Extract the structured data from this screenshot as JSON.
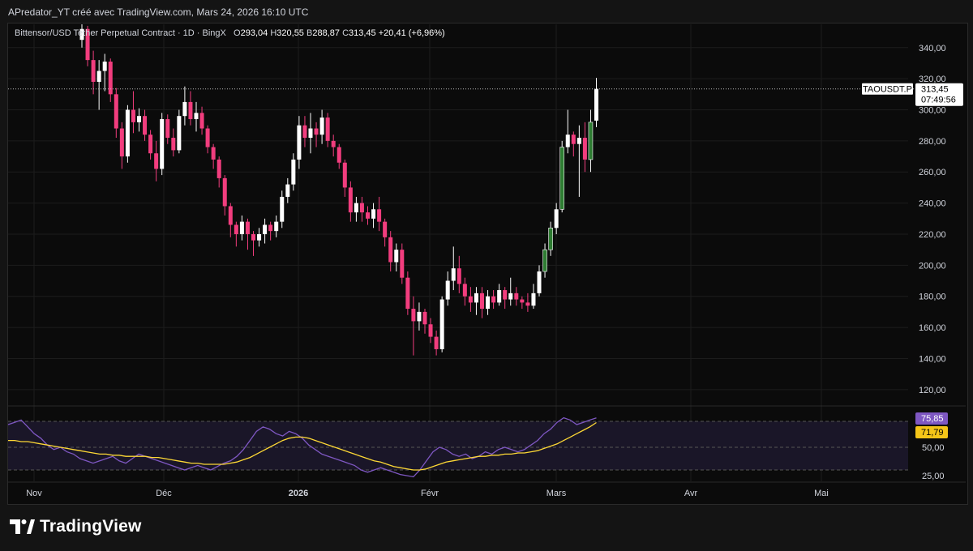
{
  "header": {
    "credit": "APredator_YT créé avec TradingView.com, Mars 24, 2026 16:10 UTC"
  },
  "legend": {
    "symbol": "Bittensor/USD Tether Perpetual Contract · 1D · BingX",
    "open_k": "O",
    "open": "293,04",
    "high_k": "H",
    "high": "320,55",
    "low_k": "B",
    "low": "288,87",
    "close_k": "C",
    "close": "313,45",
    "change": "+20,41 (+6,96%)"
  },
  "price_tag": {
    "ticker": "TAOUSDT.P",
    "price": "313,45",
    "countdown": "07:49:56"
  },
  "rsi_tags": {
    "rsi": "75,85",
    "ma": "71,79"
  },
  "brand": {
    "name": "TradingView"
  },
  "colors": {
    "up": "#ffffff",
    "down": "#f23d7e",
    "up_green": "#2e7d32",
    "rsi": "#7e57c2",
    "rsi_ma": "#fdd835",
    "ma_tag": "#f5c518"
  },
  "chart_data": [
    {
      "type": "candlestick",
      "title": "Bittensor/USD Tether Perpetual Contract · 1D · BingX",
      "ylim": [
        110,
        355
      ],
      "yticks": [
        120,
        140,
        160,
        180,
        200,
        220,
        240,
        260,
        280,
        300,
        320,
        340
      ],
      "ytick_labels": [
        "120,00",
        "140,00",
        "160,00",
        "180,00",
        "200,00",
        "220,00",
        "240,00",
        "260,00",
        "280,00",
        "300,00",
        "320,00",
        "340,00"
      ],
      "x_labels": [
        "Nov",
        "Déc",
        "2026",
        "Févr",
        "Mars",
        "Avr",
        "Mai"
      ],
      "x_label_dates": [
        "2025-11-01",
        "2025-12-01",
        "2026-01-01",
        "2026-02-01",
        "2026-03-01",
        "2026-04-01",
        "2026-05-01"
      ],
      "x_start": "2025-11-10",
      "last_price": 313.45,
      "ohlc": [
        [
          345,
          355,
          340,
          352
        ],
        [
          352,
          354,
          328,
          332
        ],
        [
          332,
          338,
          310,
          318
        ],
        [
          318,
          332,
          300,
          325
        ],
        [
          325,
          336,
          312,
          331
        ],
        [
          331,
          333,
          305,
          310
        ],
        [
          310,
          314,
          282,
          288
        ],
        [
          288,
          292,
          262,
          270
        ],
        [
          270,
          303,
          266,
          300
        ],
        [
          300,
          312,
          285,
          292
        ],
        [
          292,
          301,
          286,
          296
        ],
        [
          296,
          300,
          280,
          284
        ],
        [
          284,
          287,
          268,
          272
        ],
        [
          272,
          280,
          254,
          262
        ],
        [
          262,
          298,
          258,
          294
        ],
        [
          294,
          297,
          278,
          282
        ],
        [
          282,
          288,
          270,
          274
        ],
        [
          274,
          300,
          272,
          296
        ],
        [
          296,
          315,
          290,
          305
        ],
        [
          305,
          312,
          290,
          294
        ],
        [
          294,
          305,
          286,
          298
        ],
        [
          298,
          302,
          284,
          288
        ],
        [
          288,
          290,
          272,
          276
        ],
        [
          276,
          278,
          262,
          268
        ],
        [
          268,
          270,
          250,
          256
        ],
        [
          256,
          258,
          232,
          238
        ],
        [
          238,
          240,
          218,
          226
        ],
        [
          226,
          228,
          212,
          220
        ],
        [
          220,
          232,
          216,
          228
        ],
        [
          228,
          230,
          210,
          220
        ],
        [
          220,
          222,
          206,
          216
        ],
        [
          216,
          224,
          212,
          220
        ],
        [
          220,
          230,
          214,
          226
        ],
        [
          226,
          228,
          216,
          222
        ],
        [
          222,
          232,
          218,
          228
        ],
        [
          228,
          248,
          224,
          244
        ],
        [
          244,
          256,
          240,
          252
        ],
        [
          252,
          272,
          248,
          268
        ],
        [
          268,
          296,
          262,
          290
        ],
        [
          290,
          296,
          276,
          282
        ],
        [
          282,
          298,
          272,
          288
        ],
        [
          288,
          292,
          276,
          284
        ],
        [
          284,
          300,
          278,
          295
        ],
        [
          295,
          298,
          276,
          280
        ],
        [
          280,
          284,
          270,
          276
        ],
        [
          276,
          278,
          262,
          266
        ],
        [
          266,
          268,
          244,
          250
        ],
        [
          250,
          254,
          228,
          234
        ],
        [
          234,
          244,
          228,
          240
        ],
        [
          240,
          244,
          228,
          234
        ],
        [
          234,
          238,
          226,
          230
        ],
        [
          230,
          240,
          224,
          236
        ],
        [
          236,
          244,
          222,
          228
        ],
        [
          228,
          230,
          212,
          218
        ],
        [
          218,
          222,
          196,
          202
        ],
        [
          202,
          214,
          196,
          210
        ],
        [
          210,
          214,
          188,
          192
        ],
        [
          192,
          196,
          168,
          172
        ],
        [
          172,
          180,
          142,
          164
        ],
        [
          164,
          176,
          158,
          170
        ],
        [
          170,
          172,
          156,
          162
        ],
        [
          162,
          166,
          150,
          154
        ],
        [
          154,
          158,
          142,
          146
        ],
        [
          146,
          180,
          144,
          178
        ],
        [
          178,
          196,
          174,
          190
        ],
        [
          190,
          212,
          184,
          198
        ],
        [
          198,
          206,
          182,
          188
        ],
        [
          188,
          192,
          174,
          180
        ],
        [
          180,
          186,
          170,
          176
        ],
        [
          176,
          186,
          168,
          182
        ],
        [
          182,
          186,
          166,
          172
        ],
        [
          172,
          184,
          168,
          180
        ],
        [
          180,
          184,
          172,
          176
        ],
        [
          176,
          188,
          174,
          184
        ],
        [
          184,
          186,
          172,
          178
        ],
        [
          178,
          192,
          174,
          182
        ],
        [
          182,
          186,
          174,
          178
        ],
        [
          178,
          180,
          172,
          176
        ],
        [
          176,
          182,
          170,
          174
        ],
        [
          174,
          188,
          172,
          182
        ],
        [
          182,
          200,
          180,
          196
        ],
        [
          196,
          214,
          192,
          210
        ],
        [
          210,
          228,
          206,
          224
        ],
        [
          224,
          240,
          220,
          236
        ],
        [
          236,
          280,
          234,
          276
        ],
        [
          276,
          300,
          272,
          284
        ],
        [
          284,
          286,
          270,
          278
        ],
        [
          278,
          290,
          244,
          282
        ],
        [
          282,
          292,
          260,
          268
        ],
        [
          268,
          300,
          260,
          292
        ],
        [
          293.04,
          320.55,
          288.87,
          313.45
        ]
      ]
    },
    {
      "type": "line",
      "title": "RSI",
      "ylim": [
        20,
        85
      ],
      "yticks": [
        25,
        50
      ],
      "ytick_labels": [
        "25,00",
        "50,00"
      ],
      "bands": [
        30,
        50,
        70
      ],
      "series": [
        {
          "values": [
            70,
            72,
            74,
            68,
            62,
            58,
            52,
            48,
            50,
            46,
            44,
            40,
            38,
            36,
            38,
            40,
            42,
            38,
            36,
            40,
            44,
            42,
            40,
            38,
            36,
            34,
            32,
            30,
            32,
            34,
            32,
            30,
            33,
            36,
            38,
            42,
            48,
            56,
            64,
            68,
            66,
            62,
            60,
            64,
            62,
            58,
            52,
            48,
            44,
            42,
            40,
            38,
            36,
            34,
            30,
            28,
            30,
            32,
            30,
            28,
            26,
            25,
            24,
            30,
            38,
            46,
            50,
            48,
            44,
            42,
            44,
            40,
            42,
            46,
            44,
            48,
            50,
            48,
            46,
            48,
            52,
            56,
            62,
            66,
            72,
            76,
            74,
            70,
            72,
            74,
            75.85
          ]
        },
        {
          "values": [
            56,
            56,
            55,
            55,
            54,
            53,
            52,
            51,
            50,
            49,
            48,
            47,
            46,
            45,
            44,
            44,
            43,
            43,
            42,
            42,
            42,
            42,
            41,
            41,
            40,
            39,
            38,
            37,
            36,
            36,
            35,
            35,
            35,
            35,
            36,
            37,
            39,
            41,
            44,
            47,
            50,
            53,
            56,
            58,
            59,
            59,
            58,
            56,
            54,
            52,
            50,
            48,
            46,
            44,
            42,
            40,
            38,
            37,
            35,
            33,
            32,
            31,
            30,
            30,
            31,
            33,
            35,
            37,
            38,
            39,
            40,
            41,
            42,
            42,
            43,
            43,
            44,
            44,
            45,
            45,
            46,
            47,
            49,
            51,
            53,
            56,
            59,
            62,
            65,
            68,
            71.79
          ]
        }
      ]
    }
  ]
}
